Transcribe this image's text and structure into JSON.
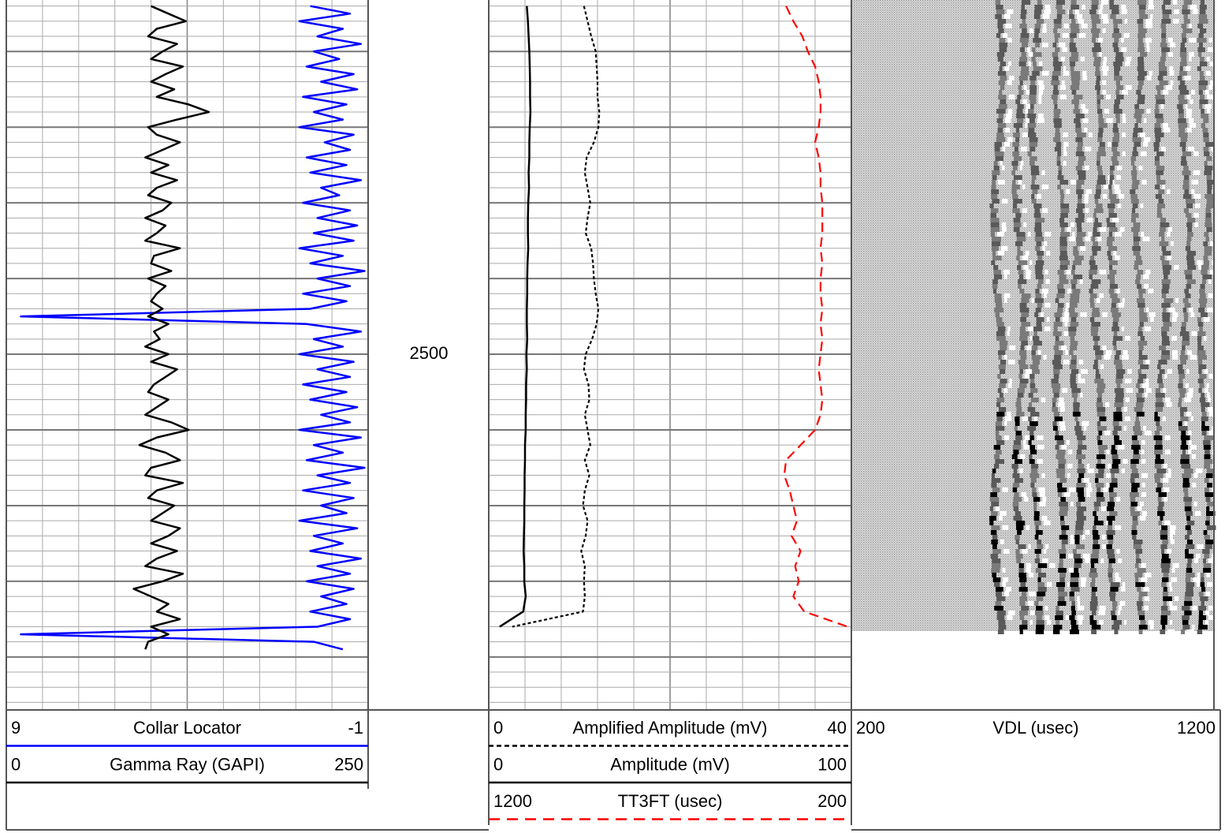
{
  "chart_data": {
    "type": "well_log",
    "depth_axis": {
      "ylim": [
        2453.2,
        2547
      ],
      "yticks": [
        {
          "value": 2460,
          "label": null
        },
        {
          "value": 2470,
          "label": null
        },
        {
          "value": 2480,
          "label": null
        },
        {
          "value": 2490,
          "label": null
        },
        2500,
        {
          "value": 2510,
          "label": null
        },
        {
          "value": 2520,
          "label": null
        },
        {
          "value": 2530,
          "label": null
        },
        {
          "value": 2540,
          "label": null
        }
      ],
      "yticks_minor": [
        2454,
        2456,
        2458,
        2462,
        2464,
        2466,
        2468,
        2472,
        2474,
        2476,
        2478,
        2482,
        2484,
        2486,
        2488,
        2492,
        2494,
        2496,
        2498,
        2502,
        2504,
        2506,
        2508,
        2512,
        2514,
        2516,
        2518,
        2522,
        2524,
        2526,
        2528,
        2532,
        2534,
        2536,
        2538,
        2542,
        2544,
        2546
      ],
      "grid": true
    },
    "tracks": [
      {
        "grid": true,
        "curves": [
          {
            "name": "Collar Locator",
            "color": "#0000ff",
            "style": "solid",
            "xlim": [
              9,
              -1
            ],
            "depths": [
              2454,
              2455,
              2456,
              2457,
              2458,
              2459,
              2460,
              2461,
              2462,
              2463,
              2464,
              2465,
              2466,
              2467,
              2468,
              2469,
              2470,
              2471,
              2472,
              2473,
              2474,
              2475,
              2476,
              2477,
              2478,
              2479,
              2480,
              2481,
              2482,
              2483,
              2484,
              2485,
              2486,
              2487,
              2488,
              2489,
              2490,
              2491,
              2492,
              2493,
              2494,
              2495,
              2496,
              2497,
              2498,
              2499,
              2500,
              2501,
              2502,
              2503,
              2504,
              2505,
              2506,
              2507,
              2508,
              2509,
              2510,
              2511,
              2512,
              2513,
              2514,
              2515,
              2516,
              2517,
              2518,
              2519,
              2520,
              2521,
              2522,
              2523,
              2524,
              2525,
              2526,
              2527,
              2528,
              2529,
              2530,
              2531,
              2532,
              2533,
              2534,
              2535,
              2536,
              2537,
              2538,
              2539
            ],
            "values": [
              0.6,
              -0.5,
              0.9,
              -0.3,
              0.4,
              -0.8,
              0.5,
              -0.2,
              0.7,
              -0.6,
              0.3,
              -0.7,
              0.8,
              -0.4,
              0.5,
              -0.3,
              0.9,
              -0.6,
              0.2,
              -0.5,
              0.7,
              -0.4,
              0.6,
              -0.8,
              0.3,
              -0.2,
              0.8,
              -0.5,
              0.4,
              -0.7,
              0.5,
              -0.6,
              0.9,
              -0.3,
              0.6,
              -0.9,
              0.4,
              -0.5,
              0.8,
              -0.4,
              0.6,
              8.6,
              0.7,
              -0.8,
              0.5,
              -0.3,
              0.9,
              -0.6,
              0.4,
              -0.5,
              0.8,
              -0.4,
              0.6,
              -0.7,
              0.3,
              -0.5,
              0.9,
              -0.8,
              0.5,
              -0.3,
              0.7,
              -0.9,
              0.4,
              -0.5,
              0.8,
              -0.6,
              0.3,
              -0.4,
              0.9,
              -0.7,
              0.5,
              -0.3,
              0.6,
              -0.8,
              0.4,
              -0.5,
              0.7,
              -0.6,
              0.3,
              -0.4,
              0.6,
              -0.5,
              0.4,
              8.6,
              0.5,
              -0.3
            ]
          },
          {
            "name": "Gamma Ray (GAPI)",
            "color": "#000000",
            "style": "solid",
            "xlim": [
              0,
              250
            ],
            "depths": [
              2454,
              2455,
              2456,
              2457,
              2458,
              2459,
              2460,
              2461,
              2462,
              2463,
              2464,
              2465,
              2466,
              2467,
              2468,
              2469,
              2470,
              2471,
              2472,
              2473,
              2474,
              2475,
              2476,
              2477,
              2478,
              2479,
              2480,
              2481,
              2482,
              2483,
              2484,
              2485,
              2486,
              2487,
              2488,
              2489,
              2490,
              2491,
              2492,
              2493,
              2494,
              2495,
              2496,
              2497,
              2498,
              2499,
              2500,
              2501,
              2502,
              2503,
              2504,
              2505,
              2506,
              2507,
              2508,
              2509,
              2510,
              2511,
              2512,
              2513,
              2514,
              2515,
              2516,
              2517,
              2518,
              2519,
              2520,
              2521,
              2522,
              2523,
              2524,
              2525,
              2526,
              2527,
              2528,
              2529,
              2530,
              2531,
              2532,
              2533,
              2534,
              2535,
              2536,
              2537,
              2538,
              2539
            ],
            "values": [
              100,
              112,
              124,
              104,
              98,
              118,
              108,
              100,
              122,
              110,
              100,
              116,
              104,
              126,
              140,
              118,
              98,
              104,
              120,
              108,
              96,
              112,
              100,
              118,
              104,
              98,
              114,
              108,
              96,
              110,
              104,
              96,
              120,
              102,
              100,
              114,
              98,
              110,
              104,
              100,
              108,
              98,
              112,
              102,
              106,
              96,
              112,
              100,
              118,
              110,
              102,
              98,
              112,
              104,
              96,
              114,
              126,
              104,
              92,
              110,
              120,
              100,
              96,
              122,
              104,
              98,
              116,
              108,
              100,
              120,
              112,
              100,
              118,
              104,
              96,
              122,
              108,
              88,
              100,
              112,
              104,
              120,
              100,
              112,
              98,
              96
            ]
          }
        ]
      },
      {
        "grid": true,
        "curves": [
          {
            "name": "Amplified Amplitude (mV)",
            "color": "#000000",
            "style": "dotted",
            "xlim": [
              0,
              40
            ],
            "depths": [
              2454,
              2456,
              2458,
              2460,
              2462,
              2464,
              2466,
              2468,
              2470,
              2472,
              2474,
              2476,
              2478,
              2480,
              2482,
              2484,
              2486,
              2488,
              2490,
              2492,
              2494,
              2496,
              2498,
              2500,
              2502,
              2504,
              2506,
              2508,
              2510,
              2512,
              2514,
              2516,
              2518,
              2520,
              2522,
              2524,
              2526,
              2528,
              2530,
              2532,
              2534,
              2536
            ],
            "values": [
              10.5,
              10.9,
              11.3,
              11.8,
              11.9,
              12.0,
              12.0,
              12.2,
              12.1,
              11.6,
              10.8,
              10.6,
              10.9,
              11.2,
              10.9,
              10.7,
              11.3,
              11.5,
              11.6,
              11.8,
              12.1,
              11.9,
              11.4,
              10.7,
              10.5,
              11.0,
              11.1,
              10.6,
              10.9,
              11.2,
              10.6,
              11.1,
              10.6,
              10.4,
              10.9,
              10.7,
              10.2,
              10.6,
              10.5,
              10.6,
              10.4,
              2.6
            ]
          },
          {
            "name": "Amplitude (mV)",
            "color": "#000000",
            "style": "solid",
            "xlim": [
              0,
              100
            ],
            "depths": [
              2454,
              2456,
              2458,
              2460,
              2462,
              2464,
              2466,
              2468,
              2470,
              2472,
              2474,
              2476,
              2478,
              2480,
              2482,
              2484,
              2486,
              2488,
              2490,
              2492,
              2494,
              2496,
              2498,
              2500,
              2502,
              2504,
              2506,
              2508,
              2510,
              2512,
              2514,
              2516,
              2518,
              2520,
              2522,
              2524,
              2526,
              2528,
              2530,
              2532,
              2534,
              2536
            ],
            "values": [
              10.5,
              10.8,
              11,
              11.2,
              11.3,
              11.4,
              11.4,
              11.5,
              11.3,
              11.2,
              11.2,
              11,
              11.1,
              10.9,
              10.8,
              10.8,
              10.9,
              10.7,
              10.6,
              10.6,
              10.5,
              10.5,
              10.6,
              10.4,
              10.5,
              10.3,
              10.3,
              10.2,
              10.2,
              10.0,
              10.0,
              9.9,
              9.9,
              9.8,
              9.8,
              9.7,
              9.6,
              9.8,
              9.8,
              10.2,
              9.5,
              3
            ]
          },
          {
            "name": "TT3FT (usec)",
            "color": "#ff0000",
            "style": "dashed",
            "xlim": [
              1200,
              200
            ],
            "depths": [
              2454,
              2456,
              2458,
              2460,
              2462,
              2464,
              2466,
              2468,
              2470,
              2472,
              2474,
              2476,
              2478,
              2480,
              2482,
              2484,
              2486,
              2488,
              2490,
              2492,
              2494,
              2496,
              2498,
              2500,
              2502,
              2504,
              2506,
              2508,
              2510,
              2512,
              2514,
              2516,
              2518,
              2520,
              2522,
              2524,
              2526,
              2528,
              2530,
              2532,
              2534,
              2536
            ],
            "values": [
              380,
              360,
              335,
              320,
              300,
              290,
              285,
              285,
              290,
              300,
              290,
              285,
              285,
              280,
              280,
              280,
              285,
              280,
              285,
              285,
              280,
              285,
              280,
              285,
              290,
              285,
              280,
              285,
              300,
              340,
              380,
              385,
              370,
              360,
              350,
              365,
              340,
              355,
              345,
              360,
              330,
              210
            ]
          }
        ]
      },
      {
        "grid": false,
        "curves": [
          {
            "name": "VDL (usec)",
            "xlim": [
              200,
              1200
            ]
          }
        ]
      }
    ]
  }
}
